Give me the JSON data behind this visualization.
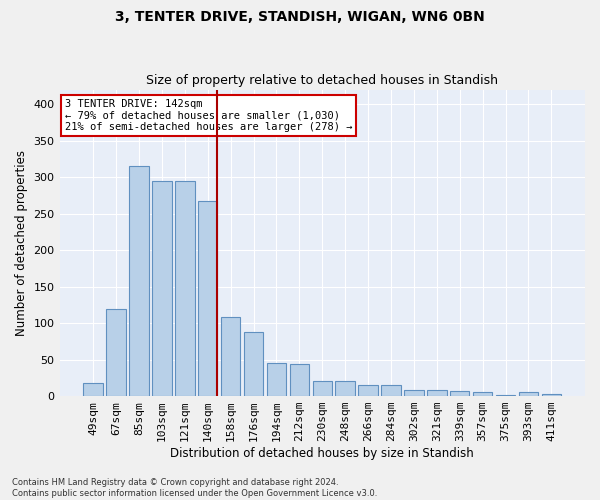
{
  "title": "3, TENTER DRIVE, STANDISH, WIGAN, WN6 0BN",
  "subtitle": "Size of property relative to detached houses in Standish",
  "xlabel": "Distribution of detached houses by size in Standish",
  "ylabel": "Number of detached properties",
  "categories": [
    "49sqm",
    "67sqm",
    "85sqm",
    "103sqm",
    "121sqm",
    "140sqm",
    "158sqm",
    "176sqm",
    "194sqm",
    "212sqm",
    "230sqm",
    "248sqm",
    "266sqm",
    "284sqm",
    "302sqm",
    "321sqm",
    "339sqm",
    "357sqm",
    "375sqm",
    "393sqm",
    "411sqm"
  ],
  "values": [
    18,
    120,
    315,
    295,
    295,
    267,
    109,
    88,
    45,
    44,
    20,
    20,
    15,
    15,
    9,
    9,
    7,
    5,
    2,
    5,
    3
  ],
  "bar_color": "#b8d0e8",
  "bar_edge_color": "#6090c0",
  "bg_color": "#e8eef8",
  "grid_color": "#ffffff",
  "vline_x_idx": 5,
  "vline_color": "#aa0000",
  "annotation_text": "3 TENTER DRIVE: 142sqm\n← 79% of detached houses are smaller (1,030)\n21% of semi-detached houses are larger (278) →",
  "annotation_box_color": "#ffffff",
  "annotation_box_edge": "#cc0000",
  "footer_text": "Contains HM Land Registry data © Crown copyright and database right 2024.\nContains public sector information licensed under the Open Government Licence v3.0.",
  "ylim": [
    0,
    420
  ],
  "yticks": [
    0,
    50,
    100,
    150,
    200,
    250,
    300,
    350,
    400
  ],
  "title_fontsize": 10,
  "subtitle_fontsize": 9,
  "axis_label_fontsize": 8.5,
  "tick_fontsize": 8,
  "annotation_fontsize": 7.5,
  "footer_fontsize": 6
}
